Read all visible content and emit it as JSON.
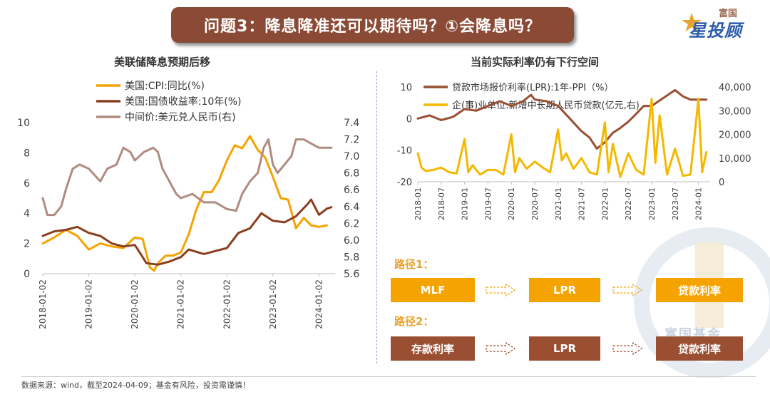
{
  "header": {
    "title": "问题3：降息降准还可以期待吗？①会降息吗？",
    "logo_top": "富国",
    "logo_main": "星投顾"
  },
  "left_chart_title": "美联储降息预期后移",
  "right_chart_title": "当前实际利率仍有下行空间",
  "watermark": "富国基金",
  "footer": "数据来源：wind，截至2024-04-09；基金有风险，投资需谨慎！",
  "paths": {
    "path1_label": "路径1：",
    "path1_boxes": [
      "MLF",
      "LPR",
      "贷款利率"
    ],
    "path2_label": "路径2：",
    "path2_boxes": [
      "存款利率",
      "LPR",
      "贷款利率"
    ]
  },
  "colors": {
    "cpi": "#f5a300",
    "treasury": "#8b3e1e",
    "cny": "#b08b7f",
    "lpr_ppi": "#9a4f33",
    "loans": "#f5b800"
  },
  "chart_data": [
    {
      "type": "line",
      "title": "美联储降息预期后移",
      "x_ticks": [
        "2018-01-02",
        "2019-01-02",
        "2020-01-02",
        "2021-01-02",
        "2022-01-02",
        "2023-01-02",
        "2024-01-02"
      ],
      "y_left_ticks": [
        "0",
        "2",
        "4",
        "6",
        "8",
        "10"
      ],
      "y_left_range": [
        0,
        10
      ],
      "y_right_ticks": [
        "5.6",
        "5.8",
        "6.0",
        "6.2",
        "6.4",
        "6.6",
        "6.8",
        "7.0",
        "7.2",
        "7.4"
      ],
      "y_right_range": [
        5.6,
        7.4
      ],
      "x_range": [
        2018.0,
        2024.35
      ],
      "grid": false,
      "legend_position": "top-left",
      "series": [
        {
          "name": "美国:CPI:同比(%)",
          "axis": "left",
          "x": [
            2018.0,
            2018.25,
            2018.5,
            2018.75,
            2019.0,
            2019.25,
            2019.5,
            2019.75,
            2020.0,
            2020.17,
            2020.33,
            2020.42,
            2020.5,
            2020.67,
            2020.83,
            2021.0,
            2021.17,
            2021.33,
            2021.5,
            2021.67,
            2021.83,
            2022.0,
            2022.17,
            2022.33,
            2022.5,
            2022.67,
            2022.83,
            2023.0,
            2023.17,
            2023.33,
            2023.5,
            2023.67,
            2023.83,
            2024.0,
            2024.17
          ],
          "y": [
            2.0,
            2.4,
            2.9,
            2.5,
            1.6,
            2.0,
            1.8,
            1.7,
            2.4,
            2.3,
            0.4,
            0.2,
            0.7,
            1.2,
            1.2,
            1.4,
            2.6,
            4.2,
            5.4,
            5.4,
            6.2,
            7.5,
            8.5,
            8.3,
            9.1,
            8.2,
            7.7,
            6.4,
            5.0,
            4.9,
            3.0,
            3.7,
            3.2,
            3.1,
            3.2
          ]
        },
        {
          "name": "美国:国债收益率:10年(%)",
          "axis": "left",
          "x": [
            2018.0,
            2018.25,
            2018.5,
            2018.75,
            2019.0,
            2019.25,
            2019.5,
            2019.75,
            2020.0,
            2020.17,
            2020.25,
            2020.5,
            2020.75,
            2021.0,
            2021.17,
            2021.5,
            2021.75,
            2022.0,
            2022.25,
            2022.5,
            2022.75,
            2023.0,
            2023.25,
            2023.5,
            2023.75,
            2023.83,
            2024.0,
            2024.17,
            2024.27
          ],
          "y": [
            2.5,
            2.8,
            2.9,
            3.1,
            2.7,
            2.5,
            2.0,
            1.8,
            1.9,
            1.1,
            0.7,
            0.6,
            0.8,
            1.1,
            1.6,
            1.3,
            1.5,
            1.7,
            2.7,
            3.0,
            4.0,
            3.5,
            3.4,
            3.8,
            4.6,
            4.9,
            3.9,
            4.3,
            4.4
          ]
        },
        {
          "name": "中间价:美元兑人民币(右)",
          "axis": "right",
          "x": [
            2018.0,
            2018.1,
            2018.25,
            2018.4,
            2018.5,
            2018.65,
            2018.8,
            2019.0,
            2019.25,
            2019.4,
            2019.6,
            2019.75,
            2019.9,
            2020.0,
            2020.2,
            2020.4,
            2020.5,
            2020.6,
            2020.75,
            2020.9,
            2021.0,
            2021.25,
            2021.5,
            2021.75,
            2022.0,
            2022.2,
            2022.33,
            2022.5,
            2022.67,
            2022.8,
            2022.9,
            2023.0,
            2023.1,
            2023.25,
            2023.4,
            2023.5,
            2023.67,
            2023.83,
            2024.0,
            2024.17,
            2024.27
          ],
          "y": [
            6.5,
            6.3,
            6.3,
            6.4,
            6.6,
            6.85,
            6.9,
            6.85,
            6.7,
            6.85,
            6.9,
            7.1,
            7.05,
            6.95,
            7.05,
            7.1,
            7.05,
            6.85,
            6.7,
            6.55,
            6.5,
            6.55,
            6.45,
            6.45,
            6.37,
            6.35,
            6.55,
            6.7,
            6.8,
            7.1,
            7.2,
            6.9,
            6.8,
            6.9,
            7.0,
            7.2,
            7.2,
            7.15,
            7.1,
            7.1,
            7.1
          ]
        }
      ]
    },
    {
      "type": "line",
      "title": "当前实际利率仍有下行空间",
      "x_ticks": [
        "2018-01",
        "2018-07",
        "2019-01",
        "2019-07",
        "2020-01",
        "2020-07",
        "2021-01",
        "2021-07",
        "2022-01",
        "2022-07",
        "2023-01",
        "2023-07",
        "2024-01"
      ],
      "y_left_ticks": [
        "-20",
        "-10",
        "0",
        "10"
      ],
      "y_left_range": [
        -20,
        10
      ],
      "y_right_ticks": [
        "0",
        "10,000",
        "20,000",
        "30,000",
        "40,000"
      ],
      "y_right_range": [
        0,
        40000
      ],
      "x_range": [
        2018.0,
        2024.25
      ],
      "grid": false,
      "legend_position": "top",
      "series": [
        {
          "name": "贷款市场报价利率(LPR):1年-PPI（%）",
          "axis": "left",
          "x": [
            2018.0,
            2018.25,
            2018.5,
            2018.75,
            2019.0,
            2019.25,
            2019.5,
            2019.75,
            2020.0,
            2020.25,
            2020.42,
            2020.5,
            2020.75,
            2021.0,
            2021.25,
            2021.5,
            2021.67,
            2021.83,
            2022.0,
            2022.17,
            2022.33,
            2022.5,
            2022.67,
            2022.83,
            2023.0,
            2023.25,
            2023.5,
            2023.67,
            2023.83,
            2024.0,
            2024.17
          ],
          "y": [
            0.0,
            1.0,
            -0.5,
            0.5,
            3.0,
            2.5,
            4.0,
            5.5,
            4.0,
            5.5,
            7.5,
            6.0,
            5.5,
            4.0,
            0.0,
            -4.0,
            -6.0,
            -9.5,
            -7.5,
            -4.5,
            -3.0,
            -1.0,
            1.5,
            4.0,
            4.0,
            6.5,
            9.0,
            7.0,
            6.0,
            6.0,
            6.0
          ]
        },
        {
          "name": "企(事)业单位:新增中长期人民币贷款(亿元,右)",
          "axis": "right",
          "x": [
            2018.0,
            2018.08,
            2018.17,
            2018.33,
            2018.5,
            2018.67,
            2018.83,
            2019.0,
            2019.08,
            2019.17,
            2019.33,
            2019.5,
            2019.67,
            2019.83,
            2020.0,
            2020.08,
            2020.17,
            2020.33,
            2020.5,
            2020.67,
            2020.83,
            2021.0,
            2021.08,
            2021.17,
            2021.33,
            2021.5,
            2021.67,
            2021.83,
            2022.0,
            2022.08,
            2022.17,
            2022.33,
            2022.5,
            2022.67,
            2022.83,
            2023.0,
            2023.08,
            2023.17,
            2023.33,
            2023.5,
            2023.67,
            2023.83,
            2024.0,
            2024.08,
            2024.17
          ],
          "y": [
            12000,
            6000,
            4500,
            5000,
            6000,
            4000,
            3500,
            18000,
            4000,
            7000,
            3000,
            5000,
            5000,
            3000,
            20000,
            4000,
            10000,
            5500,
            8500,
            6000,
            4000,
            22000,
            9000,
            12000,
            5500,
            10000,
            4000,
            3000,
            25000,
            4000,
            16000,
            2000,
            12000,
            5000,
            3000,
            35000,
            8000,
            28000,
            3000,
            14000,
            2500,
            3000,
            35000,
            4000,
            12500
          ]
        }
      ]
    }
  ]
}
